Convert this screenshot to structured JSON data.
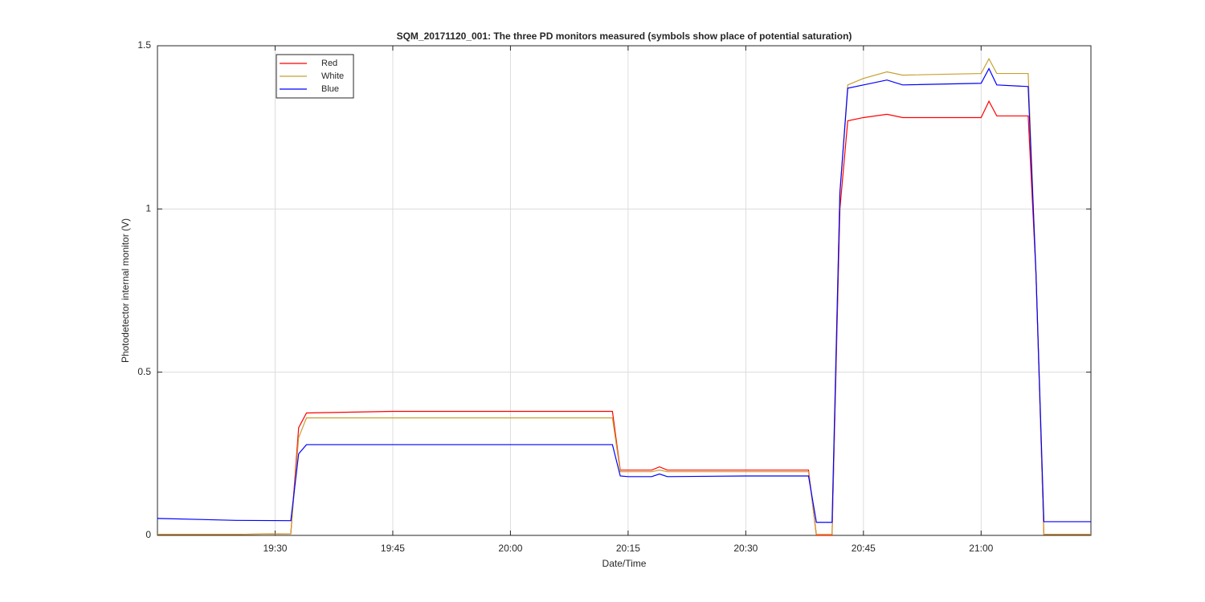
{
  "chart_data": {
    "type": "line",
    "title": "SQM_20171120_001: The three PD monitors measured (symbols show place of potential saturation)",
    "x_label": "Date/Time",
    "y_label": "Photodetector internal monitor (V)",
    "x": [
      "19:15",
      "19:25",
      "19:32",
      "19:33",
      "19:34",
      "19:45",
      "20:00",
      "20:13",
      "20:14",
      "20:15",
      "20:18",
      "20:19",
      "20:20",
      "20:30",
      "20:38",
      "20:39",
      "20:41",
      "20:42",
      "20:43",
      "20:45",
      "20:48",
      "20:50",
      "21:00",
      "21:01",
      "21:02",
      "21:06",
      "21:07",
      "21:08",
      "21:14"
    ],
    "series": [
      {
        "name": "Red",
        "color": "#ff0000",
        "values": [
          0.003,
          0.003,
          0.005,
          0.33,
          0.375,
          0.38,
          0.38,
          0.38,
          0.2,
          0.2,
          0.2,
          0.21,
          0.2,
          0.2,
          0.2,
          0.0,
          0.0,
          1.0,
          1.27,
          1.28,
          1.29,
          1.28,
          1.28,
          1.33,
          1.285,
          1.285,
          0.8,
          0.003,
          0.003
        ]
      },
      {
        "name": "White",
        "color": "#c8a032",
        "values": [
          0.003,
          0.003,
          0.005,
          0.3,
          0.36,
          0.36,
          0.36,
          0.36,
          0.195,
          0.195,
          0.195,
          0.2,
          0.195,
          0.195,
          0.195,
          0.003,
          0.003,
          1.05,
          1.38,
          1.4,
          1.42,
          1.41,
          1.415,
          1.46,
          1.415,
          1.415,
          0.8,
          0.003,
          0.003
        ]
      },
      {
        "name": "Blue",
        "color": "#0000ff",
        "values": [
          0.052,
          0.046,
          0.045,
          0.25,
          0.278,
          0.278,
          0.278,
          0.278,
          0.182,
          0.18,
          0.18,
          0.188,
          0.18,
          0.182,
          0.182,
          0.04,
          0.04,
          1.05,
          1.37,
          1.38,
          1.395,
          1.38,
          1.385,
          1.43,
          1.38,
          1.375,
          0.8,
          0.042,
          0.042
        ]
      }
    ],
    "xlim": [
      "19:15",
      "21:14"
    ],
    "xticks": [
      "19:30",
      "19:45",
      "20:00",
      "20:15",
      "20:30",
      "20:45",
      "21:00"
    ],
    "ylim": [
      0,
      1.5
    ],
    "yticks": [
      0,
      0.5,
      1,
      1.5
    ],
    "grid": true,
    "legend": "upper-left"
  }
}
